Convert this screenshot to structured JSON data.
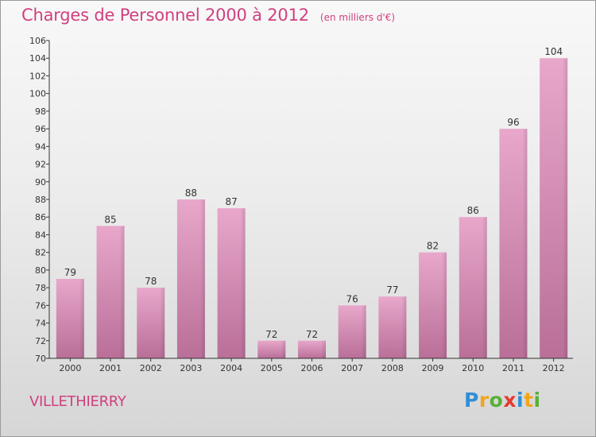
{
  "title": "Charges de Personnel 2000 à 2012",
  "subtitle": "(en milliers d'€)",
  "commune": "VILLETHIERRY",
  "logo": {
    "letters": [
      "P",
      "r",
      "o",
      "x",
      "i",
      "t",
      "i"
    ],
    "colors": [
      "#2f8fd6",
      "#f2a51a",
      "#59b035",
      "#e53a2f",
      "#2f8fd6",
      "#f2a51a",
      "#59b035"
    ]
  },
  "colors": {
    "bar": "#d88cb6",
    "title": "#d0407f"
  },
  "chart_data": {
    "type": "bar",
    "categories": [
      "2000",
      "2001",
      "2002",
      "2003",
      "2004",
      "2005",
      "2006",
      "2007",
      "2008",
      "2009",
      "2010",
      "2011",
      "2012"
    ],
    "values": [
      79,
      85,
      78,
      88,
      87,
      72,
      72,
      76,
      77,
      82,
      86,
      96,
      104
    ],
    "title": "Charges de Personnel 2000 à 2012",
    "xlabel": "",
    "ylabel": "",
    "ylim": [
      70,
      106
    ],
    "yticks": [
      70,
      72,
      74,
      76,
      78,
      80,
      82,
      84,
      86,
      88,
      90,
      92,
      94,
      96,
      98,
      100,
      102,
      104,
      106
    ],
    "grid": false
  }
}
